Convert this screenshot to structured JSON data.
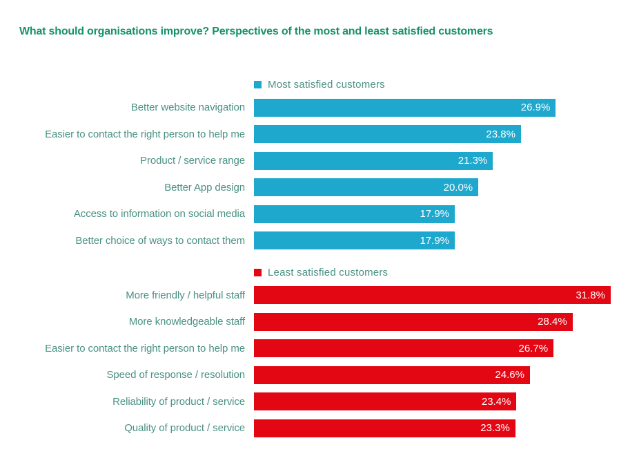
{
  "page": {
    "background": "#ffffff"
  },
  "title": "What should organisations improve? Perspectives of the most and least satisfied customers",
  "colors": {
    "title_text": "#17916d",
    "label_text": "#4a9184",
    "most_satisfied_bar": "#1ea8cd",
    "least_satisfied_bar": "#e30613",
    "value_text": "#ffffff"
  },
  "chart_data": {
    "type": "bar",
    "orientation": "horizontal",
    "value_suffix": "%",
    "scale_max": 31.8,
    "grid": false,
    "legend_position": "above-each-section",
    "sections": [
      {
        "legend": "Most satisfied customers",
        "color": "#1ea8cd",
        "categories": [
          "Better website navigation",
          "Easier to contact the right person to help me",
          "Product / service range",
          "Better App design",
          "Access to information on social media",
          "Better choice of ways to contact them"
        ],
        "values": [
          26.9,
          23.8,
          21.3,
          20.0,
          17.9,
          17.9
        ],
        "value_labels": [
          "26.9%",
          "23.8%",
          "21.3%",
          "20.0%",
          "17.9%",
          "17.9%"
        ]
      },
      {
        "legend": "Least satisfied customers",
        "color": "#e30613",
        "categories": [
          "More friendly / helpful staff",
          "More knowledgeable staff",
          "Easier to contact the right person to help me",
          "Speed of response / resolution",
          "Reliability of product / service",
          "Quality of product / service"
        ],
        "values": [
          31.8,
          28.4,
          26.7,
          24.6,
          23.4,
          23.3
        ],
        "value_labels": [
          "31.8%",
          "28.4%",
          "26.7%",
          "24.6%",
          "23.4%",
          "23.3%"
        ]
      }
    ]
  }
}
